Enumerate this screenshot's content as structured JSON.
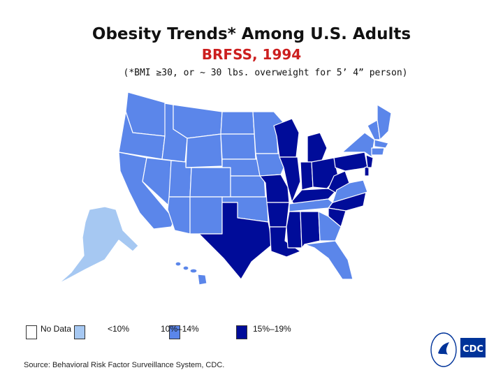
{
  "header": {
    "title": "Obesity Trends* Among U.S. Adults",
    "subtitle": "BRFSS, 1994",
    "note": "(*BMI ≥30, or ~ 30 lbs. overweight for 5’ 4” person)"
  },
  "legend": {
    "items": [
      {
        "label": "No Data",
        "color": "#ffffff"
      },
      {
        "label": "<10%",
        "color": "#a6c8f2"
      },
      {
        "label": "10%–14%",
        "color": "#5b86ea"
      },
      {
        "label": "15%–19%",
        "color": "#000c99"
      }
    ]
  },
  "colors": {
    "low": "#a6c8f2",
    "mid": "#5b86ea",
    "high": "#000c99",
    "border": "#ffffff"
  },
  "source": "Source: Behavioral Risk Factor Surveillance System, CDC.",
  "logo": {
    "text": "CDC",
    "icon": "hhs-eagle-icon"
  }
}
